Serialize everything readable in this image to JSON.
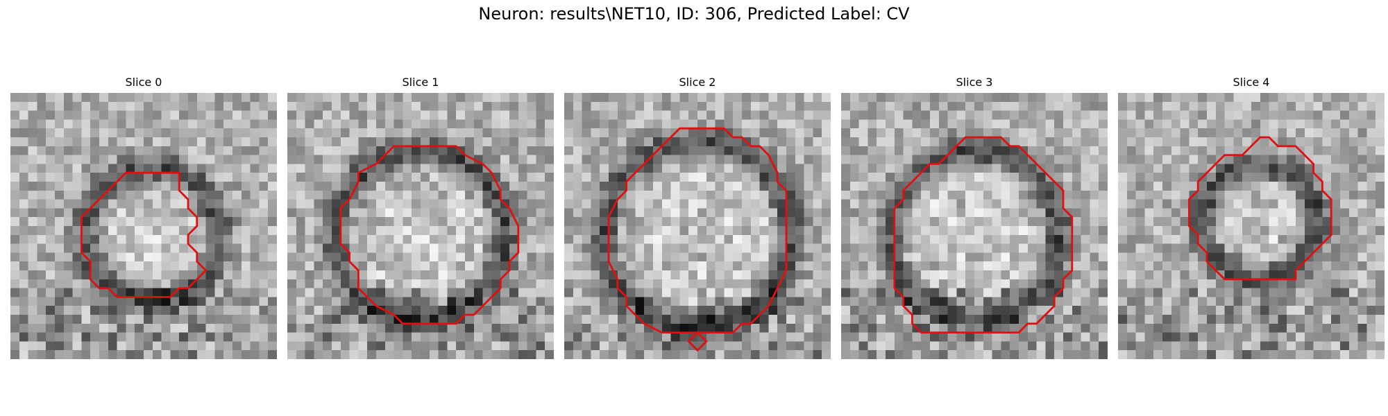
{
  "figure": {
    "title": "Neuron: results\\NET10, ID: 306, Predicted Label: CV"
  },
  "slices": [
    {
      "title": "Slice 0",
      "grid_size": 30,
      "seed": 11,
      "ring_center": [
        16,
        16
      ],
      "ring_radius": 7.5,
      "outline": [
        [
          13,
          9
        ],
        [
          19,
          9
        ],
        [
          19,
          11
        ],
        [
          20,
          12
        ],
        [
          20,
          13
        ],
        [
          21,
          14
        ],
        [
          21,
          15
        ],
        [
          20,
          16
        ],
        [
          20,
          17
        ],
        [
          21,
          18
        ],
        [
          21,
          19
        ],
        [
          22,
          20
        ],
        [
          21,
          21
        ],
        [
          20,
          22
        ],
        [
          19,
          22
        ],
        [
          18,
          23
        ],
        [
          12,
          23
        ],
        [
          11,
          22
        ],
        [
          10,
          22
        ],
        [
          9,
          21
        ],
        [
          9,
          19
        ],
        [
          8,
          18
        ],
        [
          8,
          14
        ],
        [
          9,
          13
        ],
        [
          10,
          12
        ],
        [
          11,
          11
        ],
        [
          12,
          10
        ]
      ]
    },
    {
      "title": "Slice 1",
      "grid_size": 30,
      "seed": 23,
      "ring_center": [
        15,
        16
      ],
      "ring_radius": 9.5,
      "outline": [
        [
          12,
          6
        ],
        [
          19,
          6
        ],
        [
          20,
          7
        ],
        [
          22,
          8
        ],
        [
          23,
          9
        ],
        [
          24,
          11
        ],
        [
          24,
          12
        ],
        [
          25,
          13
        ],
        [
          26,
          15
        ],
        [
          26,
          18
        ],
        [
          25,
          19
        ],
        [
          25,
          20
        ],
        [
          24,
          21
        ],
        [
          24,
          22
        ],
        [
          23,
          23
        ],
        [
          21,
          25
        ],
        [
          20,
          25
        ],
        [
          19,
          26
        ],
        [
          13,
          26
        ],
        [
          12,
          25
        ],
        [
          10,
          24
        ],
        [
          9,
          23
        ],
        [
          8,
          22
        ],
        [
          8,
          20
        ],
        [
          7,
          19
        ],
        [
          7,
          18
        ],
        [
          6,
          17
        ],
        [
          6,
          13
        ],
        [
          7,
          12
        ],
        [
          8,
          10
        ],
        [
          8,
          9
        ],
        [
          10,
          8
        ],
        [
          11,
          7
        ]
      ]
    },
    {
      "title": "Slice 2",
      "grid_size": 30,
      "seed": 37,
      "ring_center": [
        15,
        16
      ],
      "ring_radius": 10.5,
      "outline": [
        [
          13,
          4
        ],
        [
          18,
          4
        ],
        [
          19,
          5
        ],
        [
          20,
          5
        ],
        [
          21,
          6
        ],
        [
          22,
          6
        ],
        [
          23,
          7
        ],
        [
          24,
          9
        ],
        [
          24,
          10
        ],
        [
          25,
          11
        ],
        [
          25,
          13
        ],
        [
          25,
          20
        ],
        [
          24,
          22
        ],
        [
          23,
          24
        ],
        [
          21,
          26
        ],
        [
          20,
          26
        ],
        [
          19,
          27
        ],
        [
          15,
          27
        ],
        [
          16,
          28
        ],
        [
          15,
          29
        ],
        [
          14,
          28
        ],
        [
          15,
          27
        ],
        [
          11,
          27
        ],
        [
          9,
          26
        ],
        [
          7,
          24
        ],
        [
          7,
          23
        ],
        [
          6,
          22
        ],
        [
          6,
          21
        ],
        [
          5,
          19
        ],
        [
          5,
          14
        ],
        [
          6,
          12
        ],
        [
          7,
          11
        ],
        [
          7,
          10
        ],
        [
          8,
          9
        ],
        [
          9,
          8
        ],
        [
          10,
          7
        ],
        [
          11,
          6
        ],
        [
          12,
          5
        ]
      ]
    },
    {
      "title": "Slice 3",
      "grid_size": 30,
      "seed": 49,
      "ring_center": [
        15,
        16
      ],
      "ring_radius": 9.5,
      "outline": [
        [
          14,
          5
        ],
        [
          18,
          5
        ],
        [
          19,
          6
        ],
        [
          20,
          6
        ],
        [
          21,
          7
        ],
        [
          22,
          8
        ],
        [
          23,
          9
        ],
        [
          24,
          10
        ],
        [
          25,
          11
        ],
        [
          25,
          13
        ],
        [
          26,
          14
        ],
        [
          26,
          20
        ],
        [
          25,
          21
        ],
        [
          25,
          22
        ],
        [
          24,
          23
        ],
        [
          24,
          24
        ],
        [
          23,
          25
        ],
        [
          22,
          26
        ],
        [
          21,
          26
        ],
        [
          20,
          27
        ],
        [
          9,
          27
        ],
        [
          8,
          26
        ],
        [
          8,
          25
        ],
        [
          7,
          24
        ],
        [
          7,
          23
        ],
        [
          6,
          22
        ],
        [
          6,
          13
        ],
        [
          7,
          12
        ],
        [
          7,
          11
        ],
        [
          8,
          10
        ],
        [
          9,
          9
        ],
        [
          10,
          8
        ],
        [
          11,
          8
        ],
        [
          12,
          7
        ],
        [
          13,
          6
        ]
      ]
    },
    {
      "title": "Slice 4",
      "grid_size": 30,
      "seed": 61,
      "ring_center": [
        16,
        14.5
      ],
      "ring_radius": 6.5,
      "outline": [
        [
          16,
          5
        ],
        [
          17,
          5
        ],
        [
          18,
          6
        ],
        [
          20,
          6
        ],
        [
          21,
          7
        ],
        [
          22,
          8
        ],
        [
          22,
          9
        ],
        [
          23,
          10
        ],
        [
          23,
          11
        ],
        [
          24,
          12
        ],
        [
          24,
          16
        ],
        [
          23,
          17
        ],
        [
          22,
          18
        ],
        [
          21,
          19
        ],
        [
          20,
          20
        ],
        [
          20,
          21
        ],
        [
          19,
          21
        ],
        [
          19,
          21
        ],
        [
          12,
          21
        ],
        [
          11,
          20
        ],
        [
          10,
          19
        ],
        [
          10,
          18
        ],
        [
          9,
          17
        ],
        [
          9,
          16
        ],
        [
          8,
          15
        ],
        [
          8,
          12
        ],
        [
          9,
          11
        ],
        [
          9,
          10
        ],
        [
          10,
          9
        ],
        [
          11,
          8
        ],
        [
          12,
          7
        ],
        [
          14,
          7
        ],
        [
          15,
          6
        ]
      ]
    }
  ]
}
